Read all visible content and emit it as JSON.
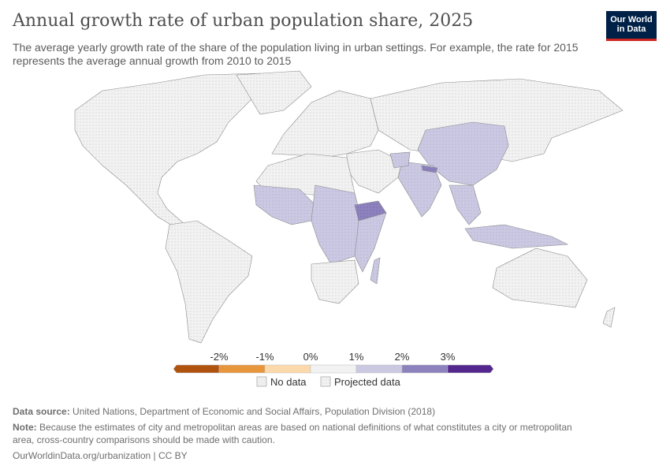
{
  "header": {
    "title": "Annual growth rate of urban population share, 2025",
    "subtitle": "The average yearly growth rate of the share of the population living in urban settings. For example, the rate for 2015 represents the average annual growth from 2010 to 2015",
    "logo": "Our World in Data"
  },
  "legend": {
    "ticks": [
      "-2%",
      "-1%",
      "0%",
      "1%",
      "2%",
      "3%"
    ],
    "bins": [
      "#b0530f",
      "#e8963c",
      "#fcd9ab",
      "#f2f2f2",
      "#cbc9e2",
      "#8d82bd",
      "#54278f"
    ],
    "no_data": "No data",
    "projected": "Projected data"
  },
  "colors": {
    "no_data": "#f2f2f2",
    "border": "#8a8a8a"
  },
  "footer": {
    "source_label": "Data source:",
    "source": "United Nations, Department of Economic and Social Affairs, Population Division (2018)",
    "note_label": "Note:",
    "note": "Because the estimates of city and metropolitan areas are based on national definitions of what constitutes a city or metropolitan area, cross-country comparisons should be made with caution.",
    "link": "OurWorldinData.org/urbanization | CC BY"
  }
}
